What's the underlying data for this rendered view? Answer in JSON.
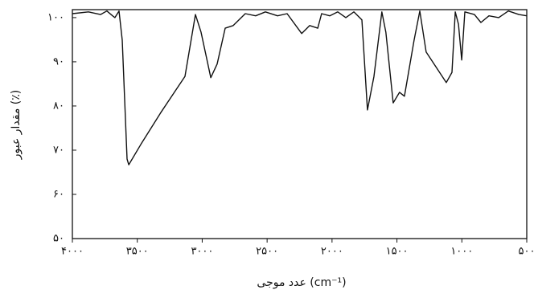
{
  "chart_data": {
    "type": "line",
    "x_label": "عدد موجی (cm⁻¹)",
    "y_label": "مقدار عبور (٪)",
    "xlim": [
      4000,
      500
    ],
    "ylim": [
      50,
      101.8
    ],
    "xticks": [
      {
        "value": 4000,
        "label": "۴۰۰۰"
      },
      {
        "value": 3500,
        "label": "۳۵۰۰"
      },
      {
        "value": 3000,
        "label": "۳۰۰۰"
      },
      {
        "value": 2500,
        "label": "۲۵۰۰"
      },
      {
        "value": 2000,
        "label": "۲۰۰۰"
      },
      {
        "value": 1500,
        "label": "۱۵۰۰"
      },
      {
        "value": 1000,
        "label": "۱۰۰۰"
      },
      {
        "value": 500,
        "label": "۵۰۰"
      }
    ],
    "yticks": [
      {
        "value": 50,
        "label": "۵۰"
      },
      {
        "value": 60,
        "label": "۶۰"
      },
      {
        "value": 70,
        "label": "۷۰"
      },
      {
        "value": 80,
        "label": "۸۰"
      },
      {
        "value": 90,
        "label": "۹۰"
      },
      {
        "value": 100,
        "label": "۱۰۰"
      }
    ],
    "color": "#111111",
    "x": [
      4000,
      3876,
      3783,
      3734,
      3690,
      3672,
      3641,
      3616,
      3579,
      3566,
      3473,
      3319,
      3133,
      3052,
      3009,
      2934,
      2885,
      2823,
      2761,
      2668,
      2588,
      2513,
      2420,
      2346,
      2234,
      2172,
      2110,
      2080,
      2018,
      1956,
      1894,
      1832,
      1770,
      1727,
      1677,
      1616,
      1585,
      1529,
      1480,
      1442,
      1368,
      1324,
      1275,
      1120,
      1076,
      1051,
      1026,
      1001,
      977,
      903,
      853,
      791,
      716,
      642,
      561,
      500
    ],
    "values": [
      100.9,
      101.3,
      100.7,
      101.5,
      100.4,
      100,
      101.5,
      94.9,
      68,
      66.7,
      71.3,
      78.5,
      86.7,
      100.7,
      96.7,
      86.4,
      89.5,
      97.6,
      98.2,
      100.9,
      100.4,
      101.3,
      100.4,
      100.9,
      96.4,
      98.2,
      97.6,
      100.9,
      100.4,
      101.3,
      100,
      101.3,
      99.5,
      79.1,
      86.7,
      101.3,
      96.7,
      80.7,
      83.1,
      82.2,
      94.9,
      101.5,
      92.2,
      85.3,
      87.6,
      101.3,
      98.5,
      90.4,
      101.3,
      100.7,
      98.9,
      100.4,
      100,
      101.5,
      100.7,
      100.4
    ]
  }
}
